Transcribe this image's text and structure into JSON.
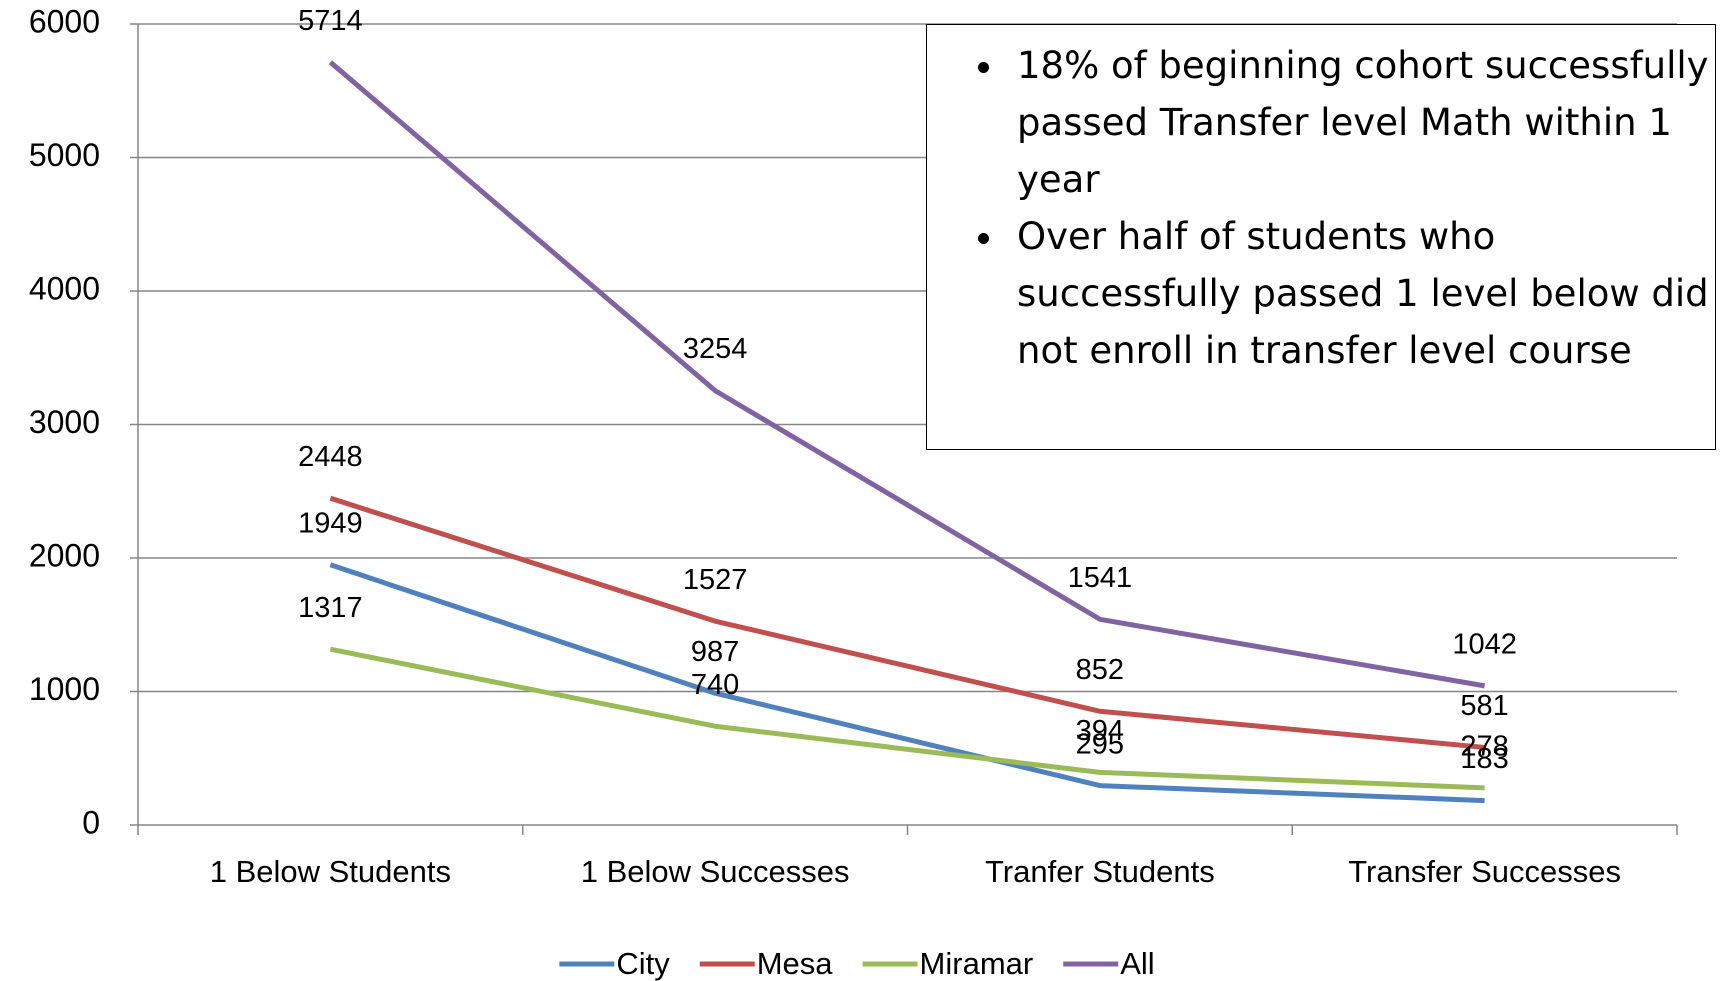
{
  "chart_data": {
    "type": "line",
    "categories": [
      "1 Below Students",
      "1 Below Successes",
      "Tranfer Students",
      "Transfer Successes"
    ],
    "series": [
      {
        "name": "City",
        "color": "#4f81bd",
        "values": [
          1949,
          987,
          295,
          183
        ]
      },
      {
        "name": "Mesa",
        "color": "#c0504d",
        "values": [
          2448,
          1527,
          852,
          581
        ]
      },
      {
        "name": "Miramar",
        "color": "#9bbb59",
        "values": [
          1317,
          740,
          394,
          278
        ]
      },
      {
        "name": "All",
        "color": "#8064a2",
        "values": [
          5714,
          3254,
          1541,
          1042
        ]
      }
    ],
    "ylim": [
      0,
      6000
    ],
    "yticks": [
      0,
      1000,
      2000,
      3000,
      4000,
      5000,
      6000
    ],
    "grid": true,
    "legend": "bottom",
    "annotations": [
      "18% of beginning cohort successfully passed Transfer level Math within 1 year",
      "Over half of students who successfully passed 1 level below did not enroll in transfer level course"
    ]
  }
}
